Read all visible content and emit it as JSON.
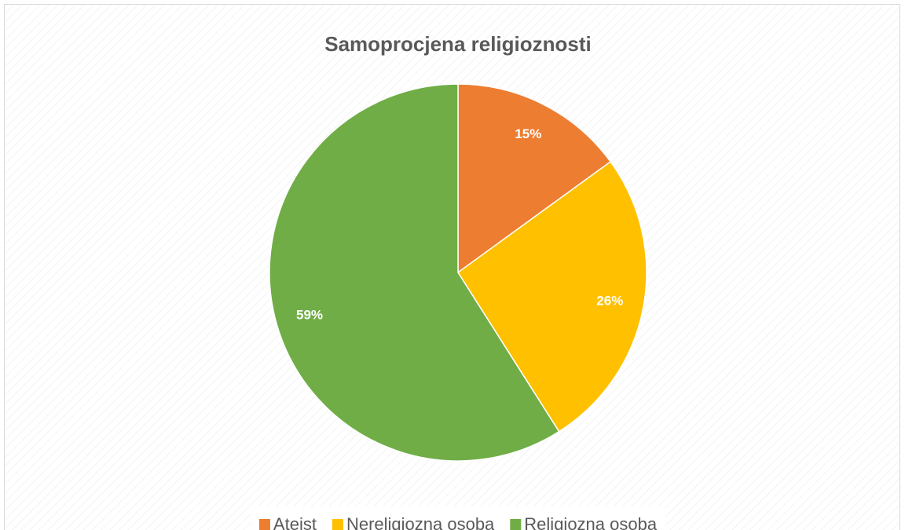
{
  "chart_data": {
    "type": "pie",
    "title": "Samoprocjena religioznosti",
    "categories": [
      "Ateist",
      "Nereligiozna osoba",
      "Religiozna osoba"
    ],
    "values": [
      15,
      26,
      59
    ],
    "value_labels": [
      "15%",
      "26%",
      "59%"
    ],
    "colors": [
      "#ed7d31",
      "#ffc000",
      "#70ad47"
    ],
    "legend": "bottom"
  }
}
